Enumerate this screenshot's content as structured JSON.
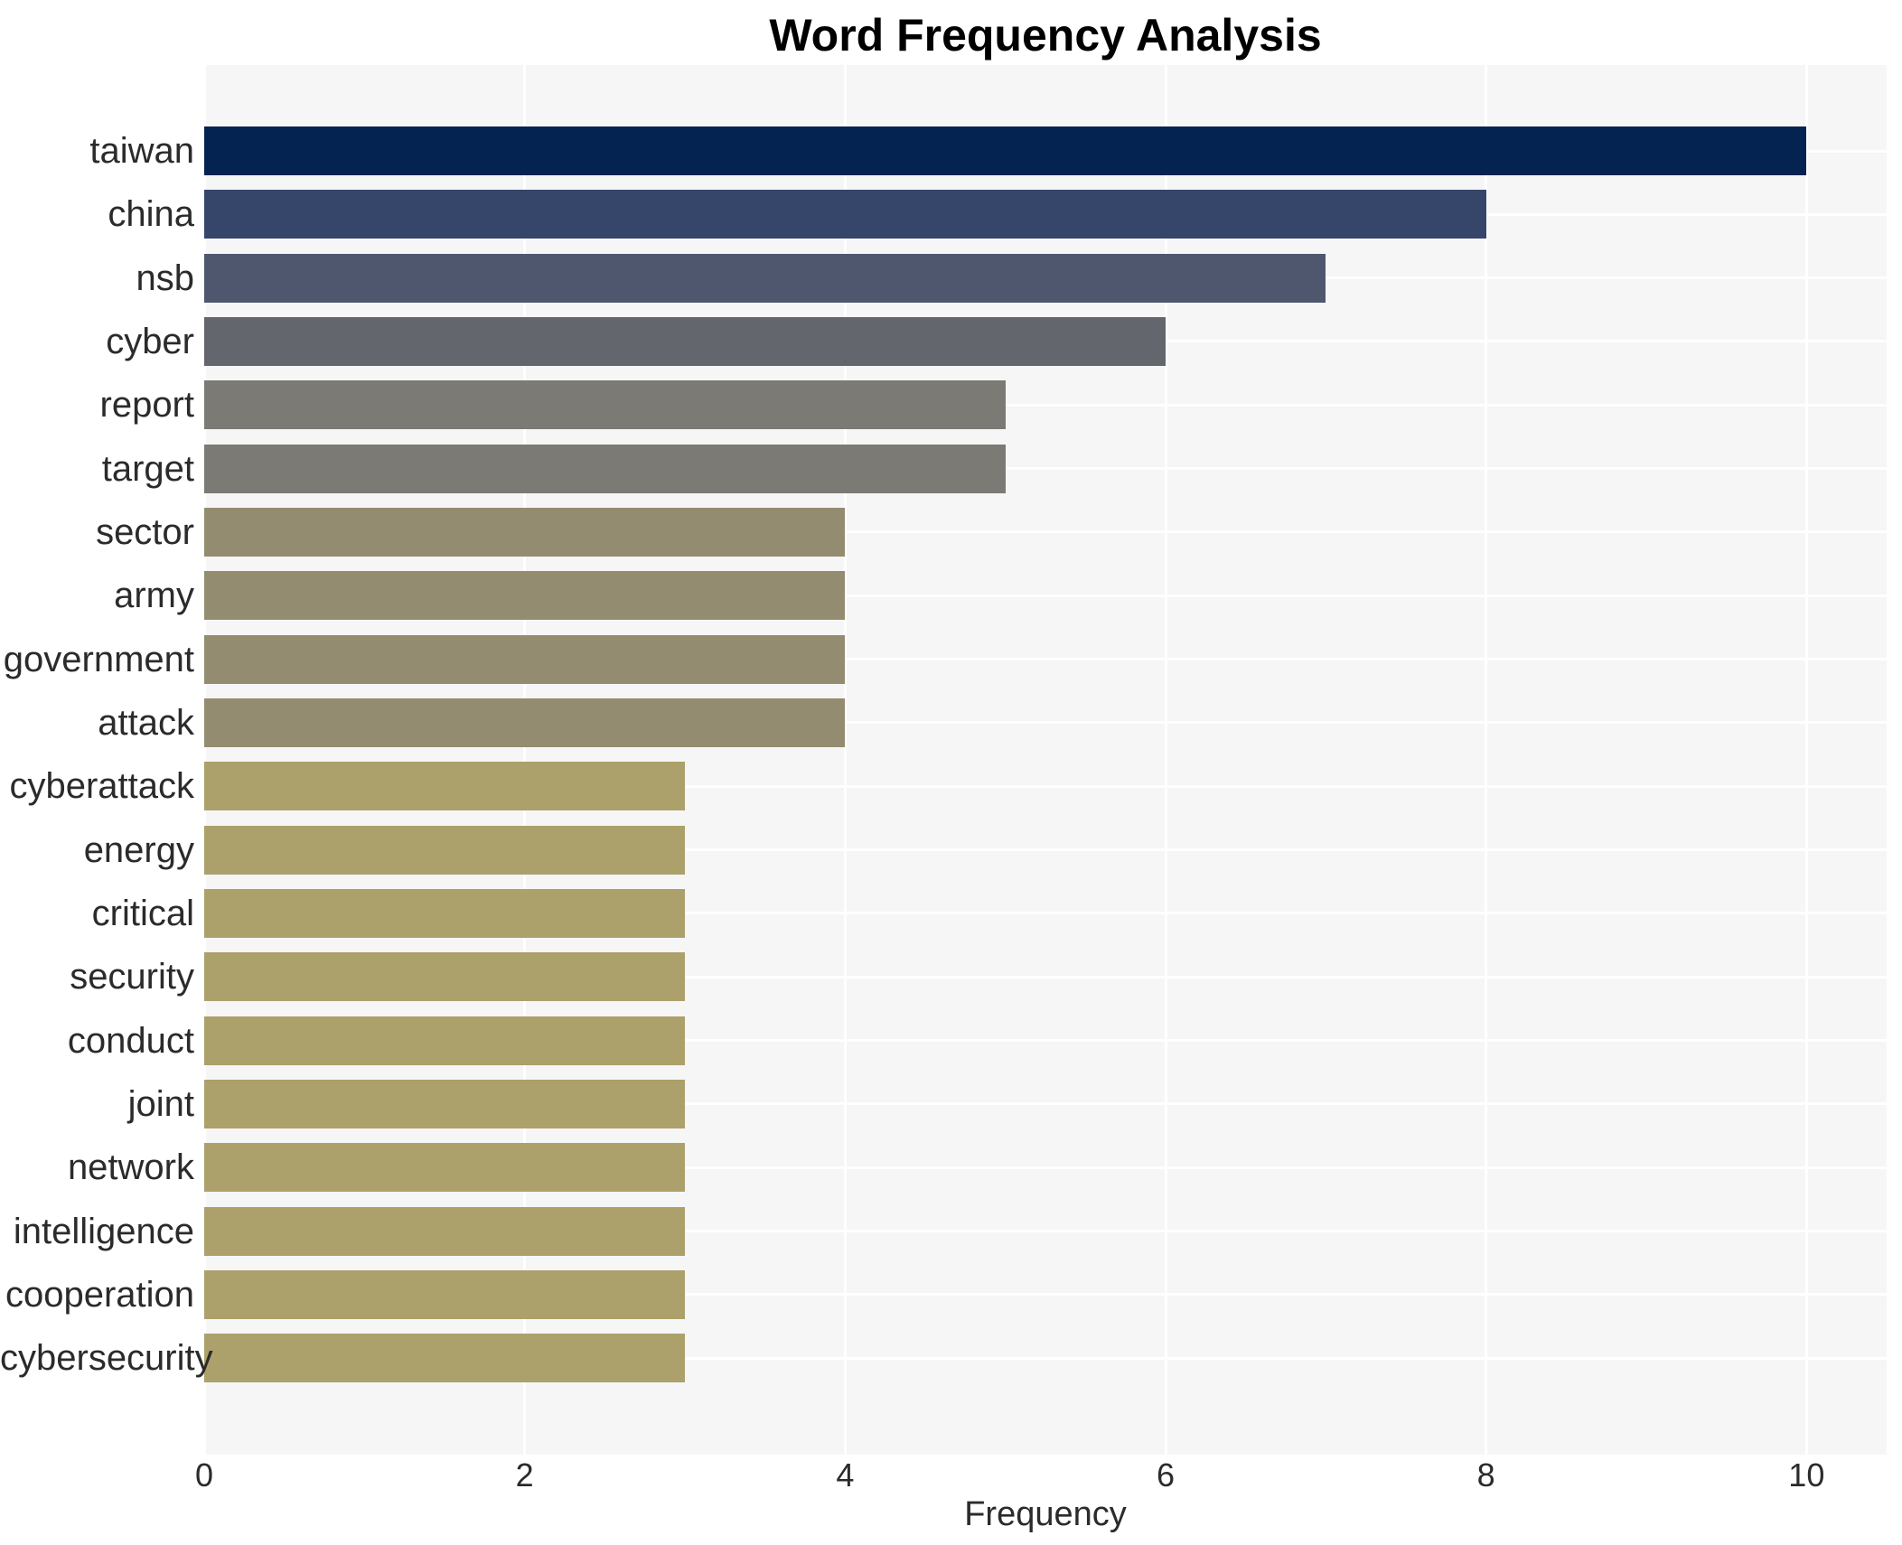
{
  "title": "Word Frequency Analysis",
  "chart_data": {
    "type": "bar",
    "orientation": "horizontal",
    "title": "Word Frequency Analysis",
    "xlabel": "Frequency",
    "ylabel": "",
    "categories": [
      "taiwan",
      "china",
      "nsb",
      "cyber",
      "report",
      "target",
      "sector",
      "army",
      "government",
      "attack",
      "cyberattack",
      "energy",
      "critical",
      "security",
      "conduct",
      "joint",
      "network",
      "intelligence",
      "cooperation",
      "cybersecurity"
    ],
    "values": [
      10,
      8,
      7,
      6,
      5,
      5,
      4,
      4,
      4,
      4,
      3,
      3,
      3,
      3,
      3,
      3,
      3,
      3,
      3,
      3
    ],
    "bar_colors": [
      "#052350",
      "#36466b",
      "#4e576e",
      "#64666e",
      "#7b7a75",
      "#7b7a75",
      "#948c71",
      "#948c71",
      "#948c71",
      "#948c71",
      "#aca06b",
      "#aca06b",
      "#aca06b",
      "#aca06b",
      "#aca06b",
      "#aca06b",
      "#aca06b",
      "#aca06b",
      "#aca06b",
      "#aca06b"
    ],
    "xticks": [
      0,
      2,
      4,
      6,
      8,
      10
    ],
    "xlim": [
      0,
      10.5
    ],
    "grid": true,
    "legend": "none",
    "plot_bg_color": "#f6f6f7",
    "grid_color": "#ffffff",
    "text_color": "#2b2b2b",
    "title_color": "#000000"
  }
}
